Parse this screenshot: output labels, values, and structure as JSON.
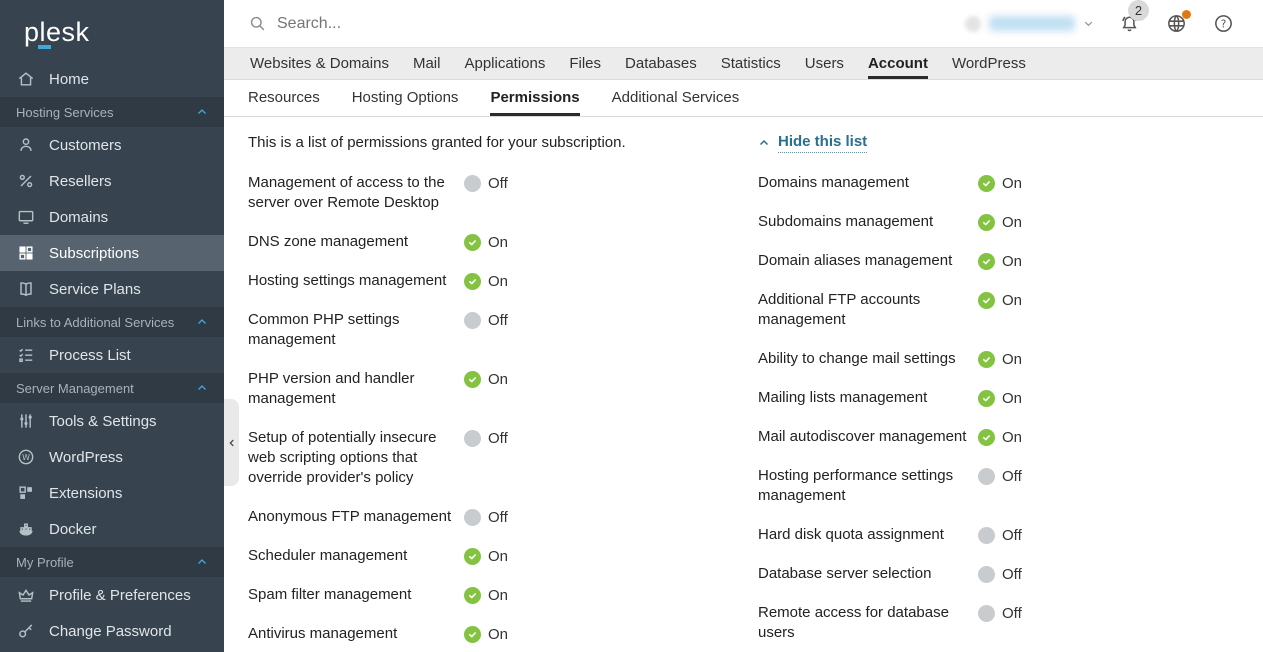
{
  "brand": {
    "logo_text": "plesk"
  },
  "topbar": {
    "search_placeholder": "Search...",
    "notification_count": "2"
  },
  "main_nav": {
    "tabs": [
      {
        "label": "Websites & Domains",
        "active": false
      },
      {
        "label": "Mail",
        "active": false
      },
      {
        "label": "Applications",
        "active": false
      },
      {
        "label": "Files",
        "active": false
      },
      {
        "label": "Databases",
        "active": false
      },
      {
        "label": "Statistics",
        "active": false
      },
      {
        "label": "Users",
        "active": false
      },
      {
        "label": "Account",
        "active": true
      },
      {
        "label": "WordPress",
        "active": false
      }
    ]
  },
  "sub_nav": {
    "tabs": [
      {
        "label": "Resources",
        "active": false
      },
      {
        "label": "Hosting Options",
        "active": false
      },
      {
        "label": "Permissions",
        "active": true
      },
      {
        "label": "Additional Services",
        "active": false
      }
    ]
  },
  "sidebar": {
    "sections": [
      {
        "header": null,
        "items": [
          {
            "label": "Home",
            "icon": "home",
            "selected": false
          }
        ]
      },
      {
        "header": "Hosting Services",
        "items": [
          {
            "label": "Customers",
            "icon": "customers",
            "selected": false
          },
          {
            "label": "Resellers",
            "icon": "resellers",
            "selected": false
          },
          {
            "label": "Domains",
            "icon": "domains",
            "selected": false
          },
          {
            "label": "Subscriptions",
            "icon": "subscriptions",
            "selected": true
          },
          {
            "label": "Service Plans",
            "icon": "service-plans",
            "selected": false
          }
        ]
      },
      {
        "header": "Links to Additional Services",
        "items": [
          {
            "label": "Process List",
            "icon": "process-list",
            "selected": false
          }
        ]
      },
      {
        "header": "Server Management",
        "items": [
          {
            "label": "Tools & Settings",
            "icon": "tools-settings",
            "selected": false
          },
          {
            "label": "WordPress",
            "icon": "wordpress",
            "selected": false
          },
          {
            "label": "Extensions",
            "icon": "extensions",
            "selected": false
          },
          {
            "label": "Docker",
            "icon": "docker",
            "selected": false
          }
        ]
      },
      {
        "header": "My Profile",
        "items": [
          {
            "label": "Profile & Preferences",
            "icon": "profile",
            "selected": false
          },
          {
            "label": "Change Password",
            "icon": "password",
            "selected": false
          }
        ]
      }
    ]
  },
  "content": {
    "intro": "This is a list of permissions granted for your subscription.",
    "hide_list_label": "Hide this list",
    "status_on_label": "On",
    "status_off_label": "Off",
    "permissions": {
      "left": [
        {
          "label": "Management of access to the server over Remote Desktop",
          "state": "off"
        },
        {
          "label": "DNS zone management",
          "state": "on"
        },
        {
          "label": "Hosting settings management",
          "state": "on"
        },
        {
          "label": "Common PHP settings management",
          "state": "off"
        },
        {
          "label": "PHP version and handler management",
          "state": "on"
        },
        {
          "label": "Setup of potentially insecure web scripting options that override provider's policy",
          "state": "off"
        },
        {
          "label": "Anonymous FTP management",
          "state": "off"
        },
        {
          "label": "Scheduler management",
          "state": "on"
        },
        {
          "label": "Spam filter management",
          "state": "on"
        },
        {
          "label": "Antivirus management",
          "state": "on"
        }
      ],
      "right": [
        {
          "label": "Domains management",
          "state": "on"
        },
        {
          "label": "Subdomains management",
          "state": "on"
        },
        {
          "label": "Domain aliases management",
          "state": "on"
        },
        {
          "label": "Additional FTP accounts management",
          "state": "on"
        },
        {
          "label": "Ability to change mail settings",
          "state": "on"
        },
        {
          "label": "Mailing lists management",
          "state": "on"
        },
        {
          "label": "Mail autodiscover management",
          "state": "on"
        },
        {
          "label": "Hosting performance settings management",
          "state": "off"
        },
        {
          "label": "Hard disk quota assignment",
          "state": "off"
        },
        {
          "label": "Database server selection",
          "state": "off"
        },
        {
          "label": "Remote access for database users",
          "state": "off"
        }
      ]
    }
  },
  "colors": {
    "sidebar_bg": "#37434e",
    "sidebar_header_bg": "#2f3a44",
    "sidebar_selected_bg": "#57636e",
    "accent_cyan": "#3fa9dc",
    "link_blue": "#28708e",
    "status_on_green": "#84c342",
    "status_off_gray": "#c9ccce",
    "nav_bg": "#ececec",
    "notification_badge_orange": "#e07912"
  }
}
